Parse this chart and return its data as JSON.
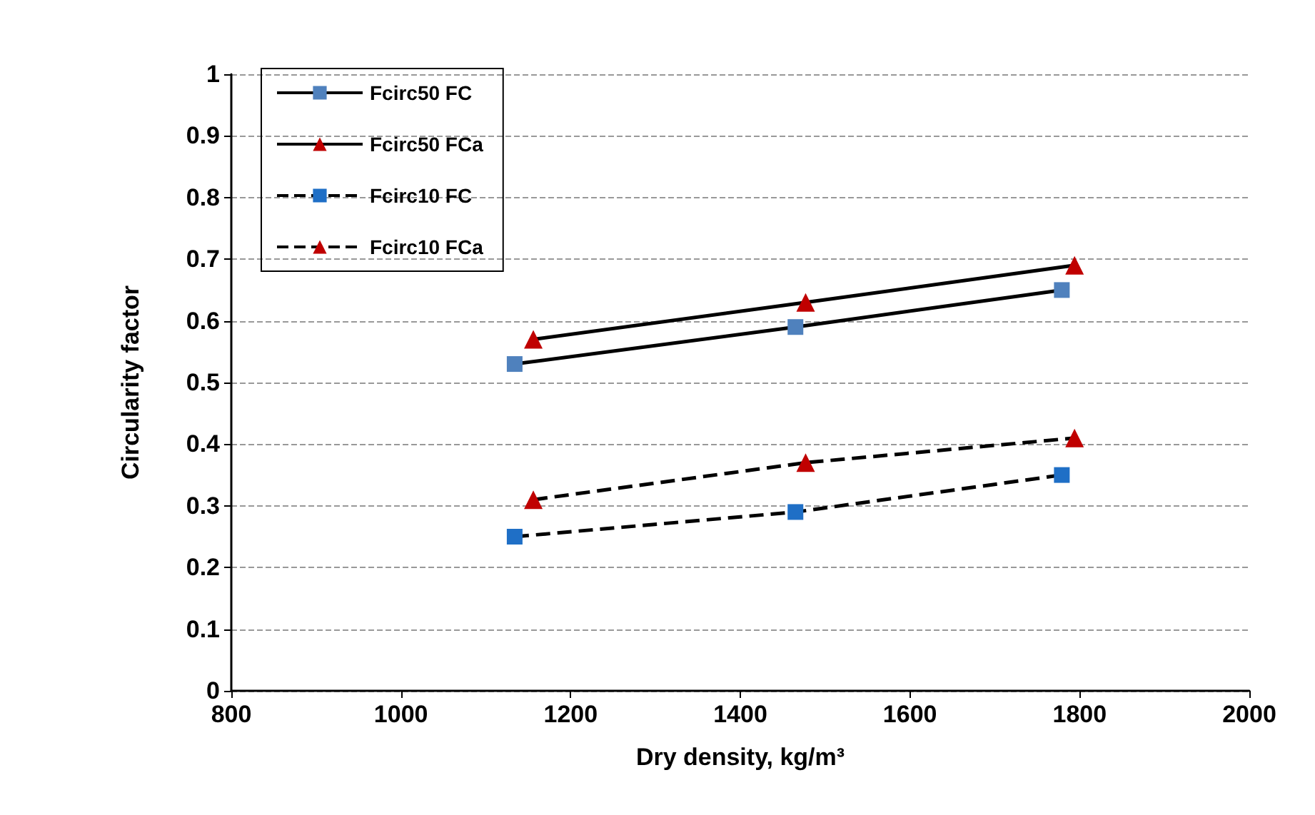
{
  "chart_data": {
    "type": "line",
    "xlabel": "Dry density, kg/m³",
    "ylabel": "Circularity factor",
    "xlim": [
      800,
      2000
    ],
    "xticks": [
      800,
      1000,
      1200,
      1400,
      1600,
      1800,
      2000
    ],
    "ylim": [
      0,
      1
    ],
    "yticks": [
      0,
      0.1,
      0.2,
      0.3,
      0.4,
      0.5,
      0.6,
      0.7,
      0.8,
      0.9,
      1
    ],
    "grid": "y",
    "legend": "top left",
    "series": [
      {
        "name": "Fcirc50 FC",
        "color": "#4f81bd",
        "marker": "square",
        "line_style": "solid",
        "x": [
          1134,
          1465,
          1779
        ],
        "values": [
          0.53,
          0.59,
          0.65
        ]
      },
      {
        "name": "Fcirc50 FCa",
        "color": "#c00000",
        "marker": "triangle",
        "line_style": "solid",
        "x": [
          1156,
          1477,
          1794
        ],
        "values": [
          0.57,
          0.63,
          0.69
        ]
      },
      {
        "name": "Fcirc10 FC",
        "color": "#1f6fc6",
        "marker": "square",
        "line_style": "dashed",
        "x": [
          1134,
          1465,
          1779
        ],
        "values": [
          0.25,
          0.29,
          0.35
        ]
      },
      {
        "name": "Fcirc10 FCa",
        "color": "#c00000",
        "marker": "triangle",
        "line_style": "dashed",
        "x": [
          1156,
          1477,
          1794
        ],
        "values": [
          0.31,
          0.37,
          0.41
        ]
      }
    ]
  }
}
